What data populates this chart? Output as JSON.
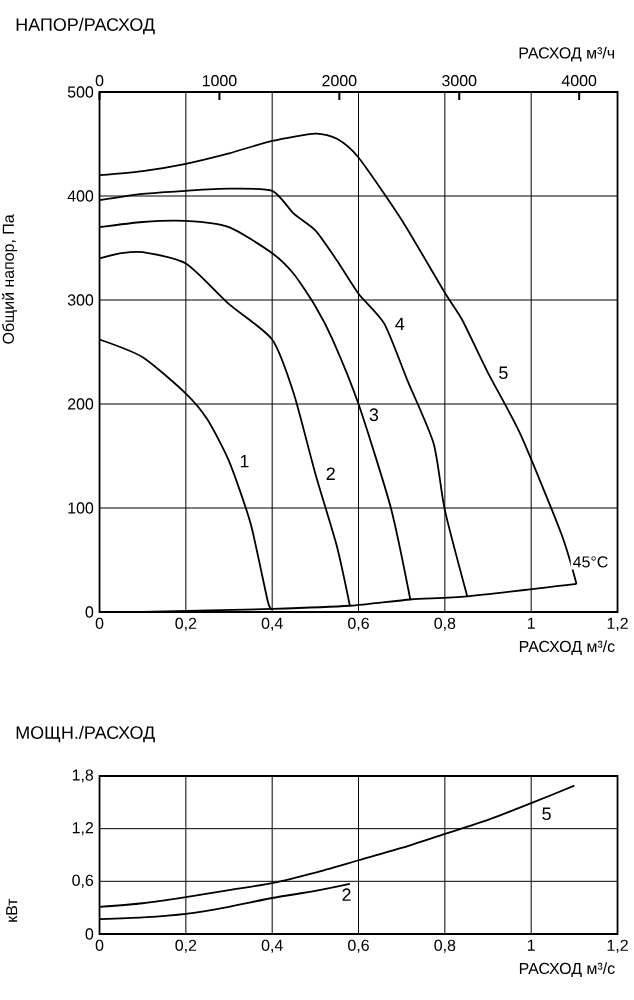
{
  "chart_data": [
    {
      "type": "line",
      "title": "НАПОР/РАСХОД",
      "xlabel": "РАСХОД м³/с",
      "ylabel": "Общий напор, Па",
      "x2label": "РАСХОД м³/ч",
      "xlim": [
        0,
        1.2
      ],
      "xticks": [
        0,
        {
          "value": 0.2,
          "label": "0,2"
        },
        {
          "value": 0.4,
          "label": "0,4"
        },
        {
          "value": 0.6,
          "label": "0,6"
        },
        {
          "value": 0.8,
          "label": "0,8"
        },
        1,
        {
          "value": 1.2,
          "label": "1,2"
        }
      ],
      "ylim": [
        0,
        500
      ],
      "yticks": [
        0,
        100,
        200,
        300,
        400,
        500
      ],
      "x2lim": [
        0,
        4320
      ],
      "x2ticks": [
        0,
        1000,
        2000,
        3000,
        4000
      ],
      "grid": true,
      "annotations": [
        {
          "text": "45°C",
          "x": 1.105,
          "y": 27
        }
      ],
      "series": [
        {
          "name": "1",
          "color": "#000000",
          "x": [
            0,
            0.1,
            0.2,
            0.25,
            0.3,
            0.35,
            0.39,
            0.4
          ],
          "values": [
            262,
            245,
            210,
            185,
            145,
            85,
            10,
            3
          ]
        },
        {
          "name": "2",
          "color": "#000000",
          "x": [
            0,
            0.05,
            0.1,
            0.2,
            0.3,
            0.4,
            0.45,
            0.5,
            0.55,
            0.58
          ],
          "values": [
            340,
            345,
            346,
            335,
            296,
            262,
            210,
            133,
            63,
            6
          ]
        },
        {
          "name": "3",
          "color": "#000000",
          "x": [
            0,
            0.1,
            0.2,
            0.3,
            0.4,
            0.45,
            0.5,
            0.54,
            0.6,
            0.675,
            0.72
          ],
          "values": [
            370,
            375,
            376,
            370,
            345,
            325,
            294,
            262,
            200,
            100,
            12
          ]
        },
        {
          "name": "4",
          "color": "#000000",
          "x": [
            0,
            0.1,
            0.2,
            0.3,
            0.4,
            0.45,
            0.5,
            0.55,
            0.6,
            0.66,
            0.713,
            0.774,
            0.8,
            0.852
          ],
          "values": [
            396,
            402,
            405,
            407,
            405,
            383,
            367,
            338,
            306,
            277,
            223,
            162,
            98,
            15
          ]
        },
        {
          "name": "5",
          "color": "#000000",
          "x": [
            0,
            0.1,
            0.2,
            0.3,
            0.4,
            0.5,
            0.55,
            0.6,
            0.7,
            0.8,
            0.84,
            0.9,
            0.975,
            1.07,
            1.105
          ],
          "values": [
            420,
            424,
            431,
            441,
            453,
            460,
            455,
            437,
            377,
            307,
            281,
            230,
            171,
            75,
            27
          ]
        },
        {
          "color": "#000000",
          "x": [
            0.1,
            0.4,
            0.58,
            0.72,
            0.852,
            1.105
          ],
          "values": [
            0,
            3,
            6,
            12,
            15,
            27
          ]
        }
      ]
    },
    {
      "type": "line",
      "title": "МОЩН./РАСХОД",
      "xlabel": "РАСХОД м³/с",
      "ylabel": "кВт",
      "xlim": [
        0,
        1.2
      ],
      "xticks": [
        0,
        {
          "value": 0.2,
          "label": "0,2"
        },
        {
          "value": 0.4,
          "label": "0,4"
        },
        {
          "value": 0.6,
          "label": "0,6"
        },
        {
          "value": 0.8,
          "label": "0,8"
        },
        1,
        {
          "value": 1.2,
          "label": "1,2"
        }
      ],
      "ylim": [
        0,
        1.8
      ],
      "yticks": [
        0,
        {
          "value": 0.6,
          "label": "0,6"
        },
        {
          "value": 1.2,
          "label": "1,2"
        },
        {
          "value": 1.8,
          "label": "1,8"
        }
      ],
      "grid": true,
      "series": [
        {
          "name": "2",
          "color": "#000000",
          "x": [
            0,
            0.1,
            0.2,
            0.3,
            0.4,
            0.5,
            0.58
          ],
          "values": [
            0.17,
            0.19,
            0.23,
            0.31,
            0.41,
            0.49,
            0.57
          ]
        },
        {
          "name": "5",
          "color": "#000000",
          "x": [
            0,
            0.1,
            0.2,
            0.3,
            0.4,
            0.5,
            0.6,
            0.7,
            0.8,
            0.9,
            1.0,
            1.1
          ],
          "values": [
            0.31,
            0.35,
            0.42,
            0.5,
            0.58,
            0.7,
            0.84,
            0.98,
            1.14,
            1.3,
            1.49,
            1.69
          ]
        }
      ]
    }
  ]
}
